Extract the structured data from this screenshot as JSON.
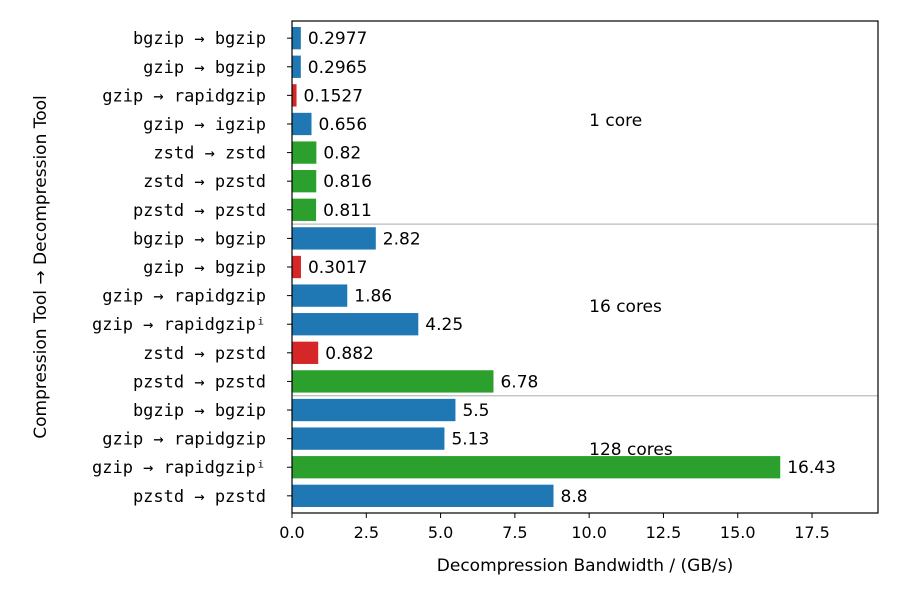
{
  "chart_data": {
    "type": "bar",
    "orientation": "horizontal",
    "xlabel": "Decompression Bandwidth / (GB/s)",
    "ylabel": "Compression Tool → Decompression Tool",
    "xlim": [
      0,
      19.72
    ],
    "xticks": [
      0.0,
      2.5,
      5.0,
      7.5,
      10.0,
      12.5,
      15.0,
      17.5
    ],
    "xtick_labels": [
      "0.0",
      "2.5",
      "5.0",
      "7.5",
      "10.0",
      "12.5",
      "15.0",
      "17.5"
    ],
    "colors": {
      "blue": "#1f77b4",
      "green": "#2ca02c",
      "red": "#d62728",
      "separator": "#bbbbbb"
    },
    "groups": [
      {
        "label": "1 core",
        "start": 0,
        "end": 6
      },
      {
        "label": "16 cores",
        "start": 7,
        "end": 12
      },
      {
        "label": "128 cores",
        "start": 13,
        "end": 16
      }
    ],
    "bars": [
      {
        "label": "bgzip → bgzip",
        "value": 0.2977,
        "value_label": "0.2977",
        "color": "blue"
      },
      {
        "label": "gzip → bgzip",
        "value": 0.2965,
        "value_label": "0.2965",
        "color": "blue"
      },
      {
        "label": "gzip → rapidgzip",
        "value": 0.1527,
        "value_label": "0.1527",
        "color": "red"
      },
      {
        "label": "gzip → igzip",
        "value": 0.656,
        "value_label": "0.656",
        "color": "blue"
      },
      {
        "label": "zstd → zstd",
        "value": 0.82,
        "value_label": "0.82",
        "color": "green"
      },
      {
        "label": "zstd → pzstd",
        "value": 0.816,
        "value_label": "0.816",
        "color": "green"
      },
      {
        "label": "pzstd → pzstd",
        "value": 0.811,
        "value_label": "0.811",
        "color": "green"
      },
      {
        "label": "bgzip → bgzip",
        "value": 2.82,
        "value_label": "2.82",
        "color": "blue"
      },
      {
        "label": "gzip → bgzip",
        "value": 0.3017,
        "value_label": "0.3017",
        "color": "red"
      },
      {
        "label": "gzip → rapidgzip",
        "value": 1.86,
        "value_label": "1.86",
        "color": "blue"
      },
      {
        "label": "gzip → rapidgzipⁱ",
        "value": 4.25,
        "value_label": "4.25",
        "color": "blue"
      },
      {
        "label": "zstd → pzstd",
        "value": 0.882,
        "value_label": "0.882",
        "color": "red"
      },
      {
        "label": "pzstd → pzstd",
        "value": 6.78,
        "value_label": "6.78",
        "color": "green"
      },
      {
        "label": "bgzip → bgzip",
        "value": 5.5,
        "value_label": "5.5",
        "color": "blue"
      },
      {
        "label": "gzip → rapidgzip",
        "value": 5.13,
        "value_label": "5.13",
        "color": "blue"
      },
      {
        "label": "gzip → rapidgzipⁱ",
        "value": 16.43,
        "value_label": "16.43",
        "color": "green"
      },
      {
        "label": "pzstd → pzstd",
        "value": 8.8,
        "value_label": "8.8",
        "color": "blue"
      }
    ]
  }
}
